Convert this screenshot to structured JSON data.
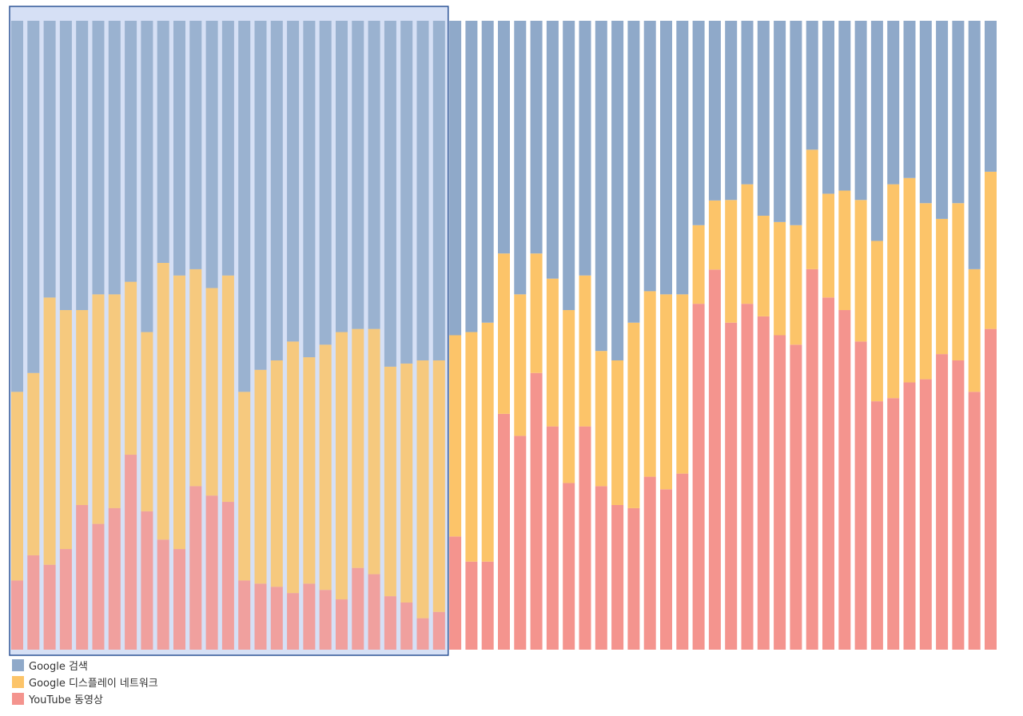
{
  "chart_data": {
    "type": "bar",
    "stacked": true,
    "normalized": true,
    "ylim": [
      0,
      100
    ],
    "grid": false,
    "legend_position": "bottom-left",
    "selection": {
      "selected_bar_count": 27
    },
    "series": [
      {
        "name": "YouTube 동영상",
        "color": "#f4948e",
        "values": [
          11,
          15,
          13.5,
          16,
          23,
          20,
          22.5,
          31,
          22,
          17.5,
          16,
          26,
          24.5,
          23.5,
          11,
          10.5,
          10,
          9,
          10.5,
          9.5,
          8,
          13,
          12,
          8.5,
          7.5,
          5,
          6,
          18,
          14,
          14,
          37.5,
          34,
          44,
          35.5,
          26.5,
          35.5,
          26,
          23,
          22.5,
          27.5,
          25.5,
          28,
          55,
          55,
          52,
          55,
          53,
          50,
          48.5,
          60.5,
          56,
          54,
          49,
          39.5,
          40,
          42.5,
          43,
          47,
          46,
          41,
          51
        ]
      },
      {
        "name": "Google 디스플레이 네트워크",
        "color": "#fcc469",
        "values": [
          30,
          29,
          42.5,
          38,
          31,
          36.5,
          34,
          27.5,
          28.5,
          44,
          43.5,
          34.5,
          33,
          36,
          30,
          34,
          36,
          40,
          36,
          39,
          42.5,
          38,
          39,
          36.5,
          38,
          41,
          40,
          32,
          36.5,
          38,
          25.5,
          22.5,
          19,
          23.5,
          27.5,
          24,
          21.5,
          23,
          29.5,
          29.5,
          31,
          28.5,
          12.5,
          10,
          19.5,
          19,
          16,
          18,
          19,
          19,
          16.5,
          19,
          22.5,
          25.5,
          34,
          32.5,
          28,
          21.5,
          25,
          19.5,
          25
        ]
      },
      {
        "name": "Google 검색",
        "color": "#8fa9c9",
        "values": [
          59,
          56,
          44,
          46,
          46,
          43.5,
          43.5,
          41.5,
          49.5,
          38.5,
          40.5,
          39.5,
          42.5,
          40.5,
          59,
          55.5,
          54,
          51,
          53.5,
          51.5,
          49.5,
          49,
          49,
          55,
          54.5,
          54,
          54,
          50,
          49.5,
          48,
          37,
          43.5,
          37,
          41,
          46,
          40.5,
          52.5,
          54,
          48,
          43,
          43.5,
          43.5,
          32.5,
          26,
          28.5,
          26,
          31,
          32,
          32.5,
          20.5,
          27.5,
          27,
          28.5,
          35,
          26,
          25,
          29,
          31.5,
          29,
          39.5,
          24
        ]
      }
    ]
  }
}
